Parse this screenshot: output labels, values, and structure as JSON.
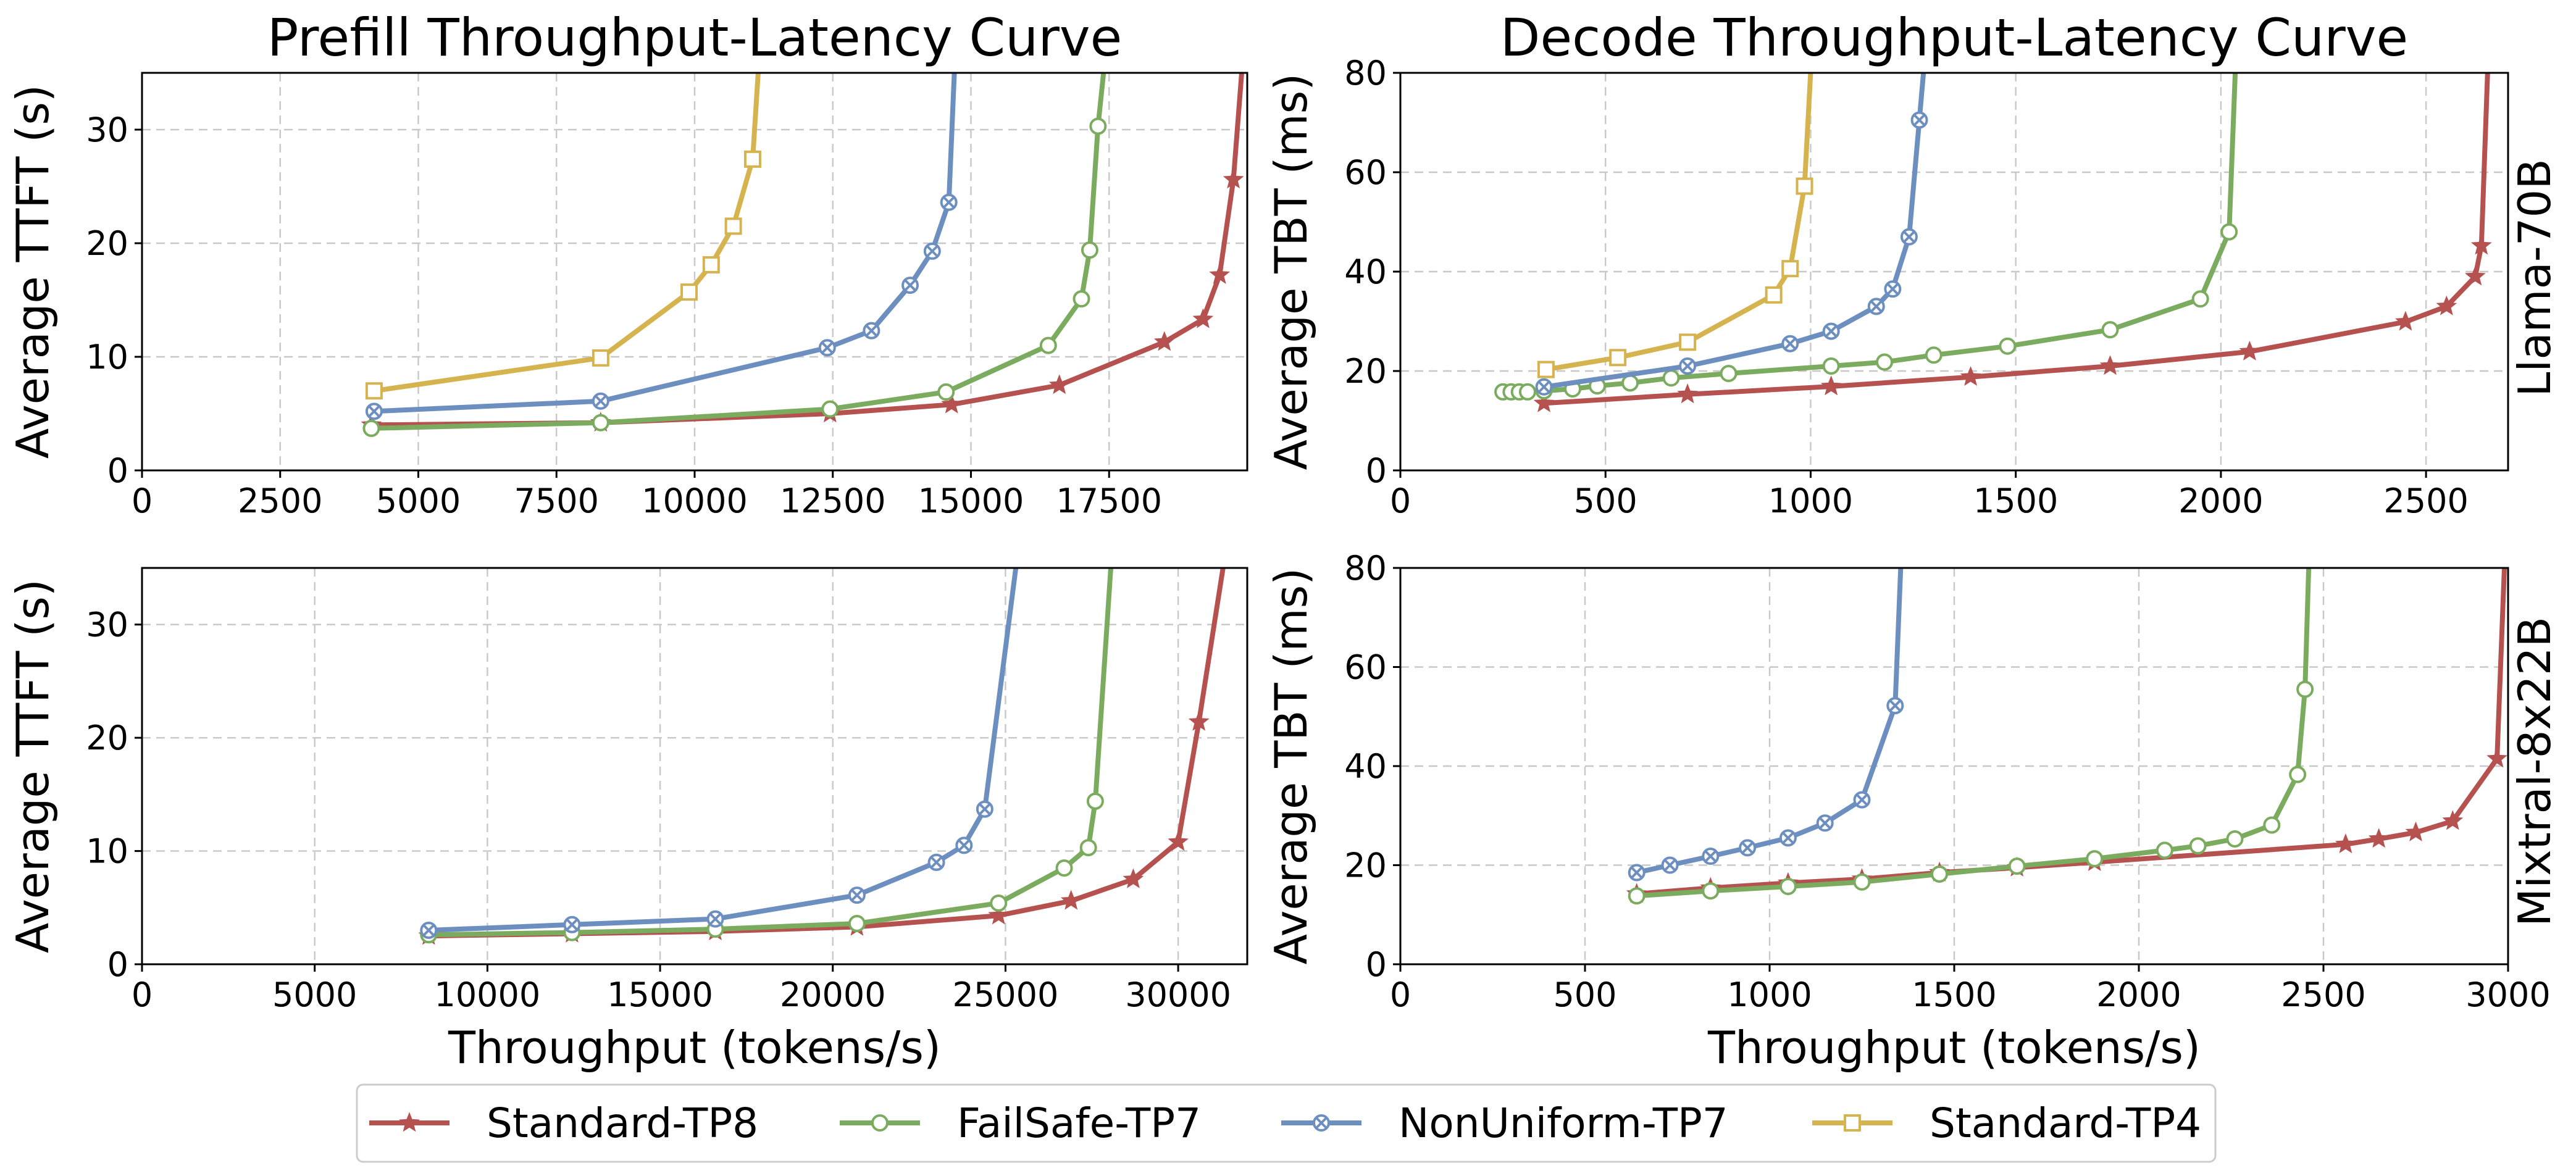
{
  "legend": [
    {
      "name": "Standard-TP8",
      "color": "#b5514f",
      "marker": "star"
    },
    {
      "name": "FailSafe-TP7",
      "color": "#7bab5e",
      "marker": "circle"
    },
    {
      "name": "NonUniform-TP7",
      "color": "#6c8fbf",
      "marker": "xcircle"
    },
    {
      "name": "Standard-TP4",
      "color": "#d5b34f",
      "marker": "square"
    }
  ],
  "row_labels": [
    "Llama-70B",
    "Mixtral-8x22B"
  ],
  "chart_data": [
    {
      "id": "prefill-llama",
      "type": "line",
      "title": "Prefill Throughput-Latency Curve",
      "xlabel": "",
      "ylabel": "Average TTFT (s)",
      "xlim": [
        0,
        20000
      ],
      "ylim": [
        0,
        35
      ],
      "xticks": [
        0,
        2500,
        5000,
        7500,
        10000,
        12500,
        15000,
        17500
      ],
      "yticks": [
        0,
        10,
        20,
        30
      ],
      "series": [
        {
          "name": "Standard-TP8",
          "marker": "star",
          "x": [
            4150,
            8300,
            12450,
            14650,
            16600,
            18500,
            19200,
            19500,
            19750,
            19900
          ],
          "y": [
            4.0,
            4.2,
            5.0,
            5.8,
            7.5,
            11.3,
            13.3,
            17.2,
            25.6,
            35.0
          ],
          "marked": [
            true,
            true,
            true,
            true,
            true,
            true,
            true,
            true,
            true,
            false
          ]
        },
        {
          "name": "FailSafe-TP7",
          "marker": "circle",
          "x": [
            4150,
            8300,
            12450,
            14550,
            16400,
            17000,
            17150,
            17300,
            17400
          ],
          "y": [
            3.7,
            4.2,
            5.4,
            6.9,
            11.0,
            15.1,
            19.4,
            30.3,
            35.0
          ],
          "marked": [
            true,
            true,
            true,
            true,
            true,
            true,
            true,
            true,
            false
          ]
        },
        {
          "name": "NonUniform-TP7",
          "marker": "xcircle",
          "x": [
            4200,
            8300,
            12400,
            13200,
            13900,
            14300,
            14600,
            14700
          ],
          "y": [
            5.2,
            6.1,
            10.8,
            12.3,
            16.3,
            19.3,
            23.6,
            35.0
          ],
          "marked": [
            true,
            true,
            true,
            true,
            true,
            true,
            true,
            false
          ]
        },
        {
          "name": "Standard-TP4",
          "marker": "square",
          "x": [
            4200,
            8300,
            9900,
            10300,
            10700,
            11050,
            11150
          ],
          "y": [
            7.0,
            9.9,
            15.7,
            18.1,
            21.5,
            27.4,
            35.0
          ],
          "marked": [
            true,
            true,
            true,
            true,
            true,
            true,
            false
          ]
        }
      ]
    },
    {
      "id": "decode-llama",
      "type": "line",
      "title": "Decode Throughput-Latency Curve",
      "xlabel": "",
      "ylabel": "Average TBT (ms)",
      "xlim": [
        0,
        2700
      ],
      "ylim": [
        0,
        80
      ],
      "xticks": [
        0,
        500,
        1000,
        1500,
        2000,
        2500
      ],
      "yticks": [
        0,
        20,
        40,
        60,
        80
      ],
      "series": [
        {
          "name": "Standard-TP8",
          "marker": "star",
          "x": [
            350,
            700,
            1050,
            1390,
            1730,
            2070,
            2450,
            2550,
            2620,
            2635,
            2650
          ],
          "y": [
            13.5,
            15.3,
            16.9,
            18.8,
            21.0,
            23.9,
            29.9,
            33.0,
            39.0,
            45.2,
            80.0
          ],
          "marked": [
            true,
            true,
            true,
            true,
            true,
            true,
            true,
            true,
            true,
            true,
            false
          ]
        },
        {
          "name": "FailSafe-TP7",
          "marker": "circle",
          "x": [
            250,
            270,
            290,
            310,
            350,
            420,
            480,
            560,
            660,
            800,
            1050,
            1180,
            1300,
            1480,
            1730,
            1950,
            2020,
            2035
          ],
          "y": [
            15.8,
            15.8,
            15.8,
            15.8,
            16.0,
            16.4,
            17.0,
            17.6,
            18.6,
            19.5,
            21.0,
            21.8,
            23.2,
            25.0,
            28.3,
            34.5,
            48.0,
            80.0
          ],
          "marked": [
            true,
            true,
            true,
            true,
            true,
            true,
            true,
            true,
            true,
            true,
            true,
            true,
            true,
            true,
            true,
            true,
            true,
            false
          ]
        },
        {
          "name": "NonUniform-TP7",
          "marker": "xcircle",
          "x": [
            350,
            700,
            950,
            1050,
            1160,
            1200,
            1240,
            1265,
            1275
          ],
          "y": [
            16.8,
            21.0,
            25.5,
            28.0,
            33.0,
            36.5,
            47.0,
            70.5,
            80.0
          ],
          "marked": [
            true,
            true,
            true,
            true,
            true,
            true,
            true,
            true,
            false
          ]
        },
        {
          "name": "Standard-TP4",
          "marker": "square",
          "x": [
            355,
            530,
            700,
            910,
            950,
            985,
            1000
          ],
          "y": [
            20.3,
            22.7,
            25.8,
            35.3,
            40.6,
            57.2,
            80.0
          ],
          "marked": [
            true,
            true,
            true,
            true,
            true,
            true,
            false
          ]
        }
      ]
    },
    {
      "id": "prefill-mixtral",
      "type": "line",
      "title": "",
      "xlabel": "Throughput (tokens/s)",
      "ylabel": "Average TTFT (s)",
      "xlim": [
        0,
        32000
      ],
      "ylim": [
        0,
        35
      ],
      "xticks": [
        0,
        5000,
        10000,
        15000,
        20000,
        25000,
        30000
      ],
      "yticks": [
        0,
        10,
        20,
        30
      ],
      "series": [
        {
          "name": "Standard-TP8",
          "marker": "star",
          "x": [
            8300,
            12450,
            16600,
            20700,
            24800,
            26900,
            28700,
            30000,
            30600,
            31300
          ],
          "y": [
            2.5,
            2.7,
            2.9,
            3.3,
            4.3,
            5.6,
            7.5,
            10.8,
            21.4,
            35.0
          ],
          "marked": [
            true,
            true,
            true,
            true,
            true,
            true,
            true,
            true,
            true,
            false
          ]
        },
        {
          "name": "FailSafe-TP7",
          "marker": "circle",
          "x": [
            8300,
            12450,
            16600,
            20700,
            24800,
            26700,
            27400,
            27600,
            28050
          ],
          "y": [
            2.6,
            2.8,
            3.1,
            3.6,
            5.4,
            8.5,
            10.3,
            14.4,
            35.0
          ],
          "marked": [
            true,
            true,
            true,
            true,
            true,
            true,
            true,
            true,
            false
          ]
        },
        {
          "name": "NonUniform-TP7",
          "marker": "xcircle",
          "x": [
            8300,
            12450,
            16600,
            20700,
            23000,
            23800,
            24400,
            25300
          ],
          "y": [
            3.0,
            3.5,
            4.0,
            6.1,
            9.0,
            10.5,
            13.7,
            35.0
          ],
          "marked": [
            true,
            true,
            true,
            true,
            true,
            true,
            true,
            false
          ]
        }
      ]
    },
    {
      "id": "decode-mixtral",
      "type": "line",
      "title": "",
      "xlabel": "Throughput (tokens/s)",
      "ylabel": "Average TBT (ms)",
      "xlim": [
        0,
        3000
      ],
      "ylim": [
        0,
        80
      ],
      "xticks": [
        0,
        500,
        1000,
        1500,
        2000,
        2500,
        3000
      ],
      "yticks": [
        0,
        20,
        40,
        60,
        80
      ],
      "series": [
        {
          "name": "Standard-TP8",
          "marker": "star",
          "x": [
            640,
            840,
            1050,
            1250,
            1460,
            1670,
            1880,
            2560,
            2650,
            2750,
            2850,
            2970,
            2990
          ],
          "y": [
            14.2,
            15.4,
            16.4,
            17.2,
            18.5,
            19.5,
            20.6,
            24.2,
            25.3,
            26.6,
            28.9,
            41.5,
            80.0
          ],
          "marked": [
            true,
            true,
            true,
            true,
            true,
            true,
            true,
            true,
            true,
            true,
            true,
            true,
            false
          ]
        },
        {
          "name": "FailSafe-TP7",
          "marker": "circle",
          "x": [
            640,
            840,
            1050,
            1250,
            1460,
            1670,
            1880,
            2070,
            2160,
            2260,
            2360,
            2430,
            2450,
            2460
          ],
          "y": [
            13.8,
            14.8,
            15.7,
            16.6,
            18.2,
            19.8,
            21.3,
            23.0,
            23.9,
            25.3,
            28.1,
            38.3,
            55.5,
            80.0
          ],
          "marked": [
            true,
            true,
            true,
            true,
            true,
            true,
            true,
            true,
            true,
            true,
            true,
            true,
            true,
            false
          ]
        },
        {
          "name": "NonUniform-TP7",
          "marker": "xcircle",
          "x": [
            640,
            730,
            840,
            940,
            1050,
            1150,
            1250,
            1340,
            1355
          ],
          "y": [
            18.5,
            20.0,
            21.8,
            23.5,
            25.5,
            28.5,
            33.2,
            52.2,
            80.0
          ],
          "marked": [
            true,
            true,
            true,
            true,
            true,
            true,
            true,
            true,
            false
          ]
        }
      ]
    }
  ]
}
